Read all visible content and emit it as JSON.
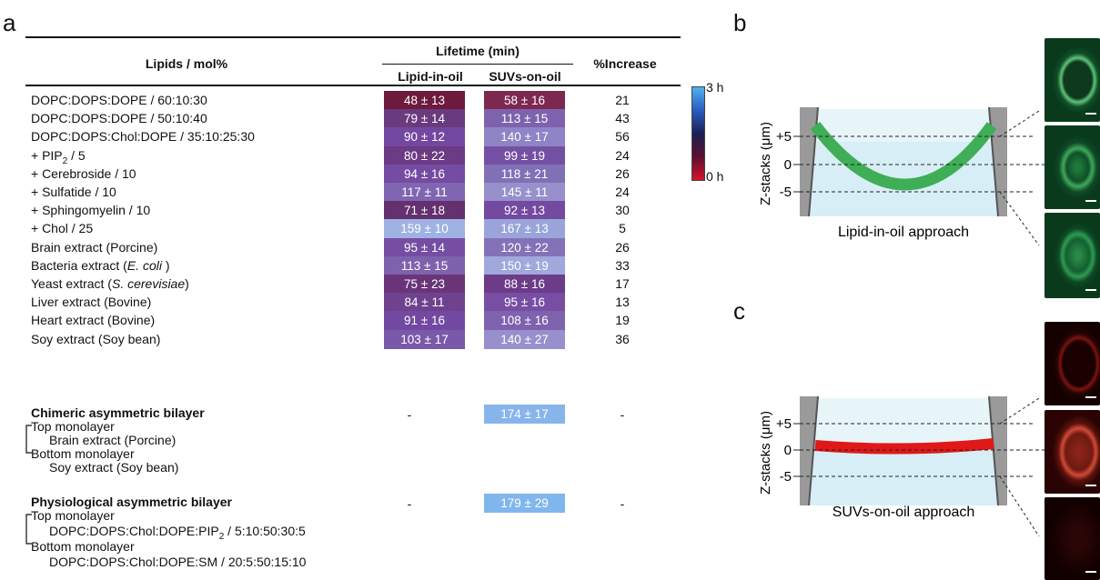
{
  "panels": {
    "a": "a",
    "b": "b",
    "c": "c"
  },
  "table": {
    "header_lipids": "Lipids / mol%",
    "header_lifetime": "Lifetime (min)",
    "header_lipid_in_oil": "Lipid-in-oil",
    "header_suvs_on_oil": "SUVs-on-oil",
    "header_increase": "%Increase",
    "rows": [
      {
        "label": "DOPC:DOPS:DOPE / 60:10:30",
        "a": "48 ± 13",
        "b": "58 ± 16",
        "inc": "21",
        "ca": "#6d1a3c",
        "cb": "#7d2850"
      },
      {
        "label": "DOPC:DOPS:DOPE / 50:10:40",
        "a": "79 ± 14",
        "b": "113 ± 15",
        "inc": "43",
        "ca": "#6a3a7e",
        "cb": "#7e62ae"
      },
      {
        "label": "DOPC:DOPS:Chol:DOPE / 35:10:25:30",
        "a": "90 ± 12",
        "b": "140 ± 17",
        "inc": "56",
        "ca": "#7348a0",
        "cb": "#8f84c6"
      },
      {
        "label_pre": "+ PIP",
        "label_sub": "2",
        "label_post": " / 5",
        "a": "80 ± 22",
        "b": "99 ± 19",
        "inc": "24",
        "ca": "#6c3b85",
        "cb": "#7450a4"
      },
      {
        "label": "+ Cerebroside / 10",
        "a": "94 ± 16",
        "b": "118 ± 21",
        "inc": "26",
        "ca": "#744ca2",
        "cb": "#8170b6"
      },
      {
        "label": "+ Sulfatide / 10",
        "a": "117 ± 11",
        "b": "145 ± 11",
        "inc": "24",
        "ca": "#8066b2",
        "cb": "#9790cc"
      },
      {
        "label": "+ Sphingomyelin / 10",
        "a": "71 ± 18",
        "b": "92 ± 13",
        "inc": "30",
        "ca": "#64306e",
        "cb": "#734aa0"
      },
      {
        "label": "+ Chol / 25",
        "a": "159 ± 10",
        "b": "167 ± 13",
        "inc": "5",
        "ca": "#a0b2e4",
        "cb": "#9aa4da"
      },
      {
        "label": "Brain extract (Porcine)",
        "a": "95 ± 14",
        "b": "120 ± 22",
        "inc": "26",
        "ca": "#754ea4",
        "cb": "#8372b8"
      },
      {
        "label_pre": "Bacteria extract (",
        "label_ital": "E. coli",
        "label_post": " )",
        "a": "113 ± 15",
        "b": "150 ± 19",
        "inc": "33",
        "ca": "#7e62ae",
        "cb": "#a0a8dc"
      },
      {
        "label_pre": "Yeast extract (",
        "label_ital": "S. cerevisiae",
        "label_post": ")",
        "a": "75 ± 23",
        "b": "88 ± 16",
        "inc": "17",
        "ca": "#693578",
        "cb": "#6c3c88"
      },
      {
        "label": "Liver extract (Bovine)",
        "a": "84 ± 11",
        "b": "95 ± 16",
        "inc": "13",
        "ca": "#6e428e",
        "cb": "#774ea4"
      },
      {
        "label": "Heart extract (Bovine)",
        "a": "91 ± 16",
        "b": "108 ± 16",
        "inc": "19",
        "ca": "#7248a0",
        "cb": "#7e62ae"
      },
      {
        "label": "Soy extract (Soy bean)",
        "a": "103 ± 17",
        "b": "140 ± 27",
        "inc": "36",
        "ca": "#7a58aa",
        "cb": "#9790cc"
      }
    ],
    "chimeric": {
      "title": "Chimeric asymmetric bilayer",
      "a": "-",
      "b": "174 ± 17",
      "inc": "-",
      "cb": "#88b4ec",
      "top_label": "Top monolayer",
      "top_value": "Brain extract (Porcine)",
      "bottom_label": "Bottom monolayer",
      "bottom_value": "Soy extract (Soy bean)"
    },
    "physiological": {
      "title": "Physiological asymmetric bilayer",
      "a": "-",
      "b": "179 ± 29",
      "inc": "-",
      "cb": "#80b6ee",
      "top_label": "Top monolayer",
      "top_value_pre": "DOPC:DOPS:Chol:DOPE:PIP",
      "top_value_sub": "2",
      "top_value_post": " / 5:10:50:30:5",
      "bottom_label": "Bottom monolayer",
      "bottom_value": "DOPC:DOPS:Chol:DOPE:SM / 20:5:50:15:10"
    },
    "colorbar_top": "3 h",
    "colorbar_bottom": "0 h"
  },
  "panel_b": {
    "ylabel": "Z-stacks (μm)",
    "ticks": [
      "+5",
      "0",
      "-5"
    ],
    "caption": "Lipid-in-oil approach",
    "membrane_color": "#3fae56"
  },
  "panel_c": {
    "ylabel": "Z-stacks (μm)",
    "ticks": [
      "+5",
      "0",
      "-5"
    ],
    "caption": "SUVs-on-oil approach",
    "membrane_color": "#e01818"
  }
}
